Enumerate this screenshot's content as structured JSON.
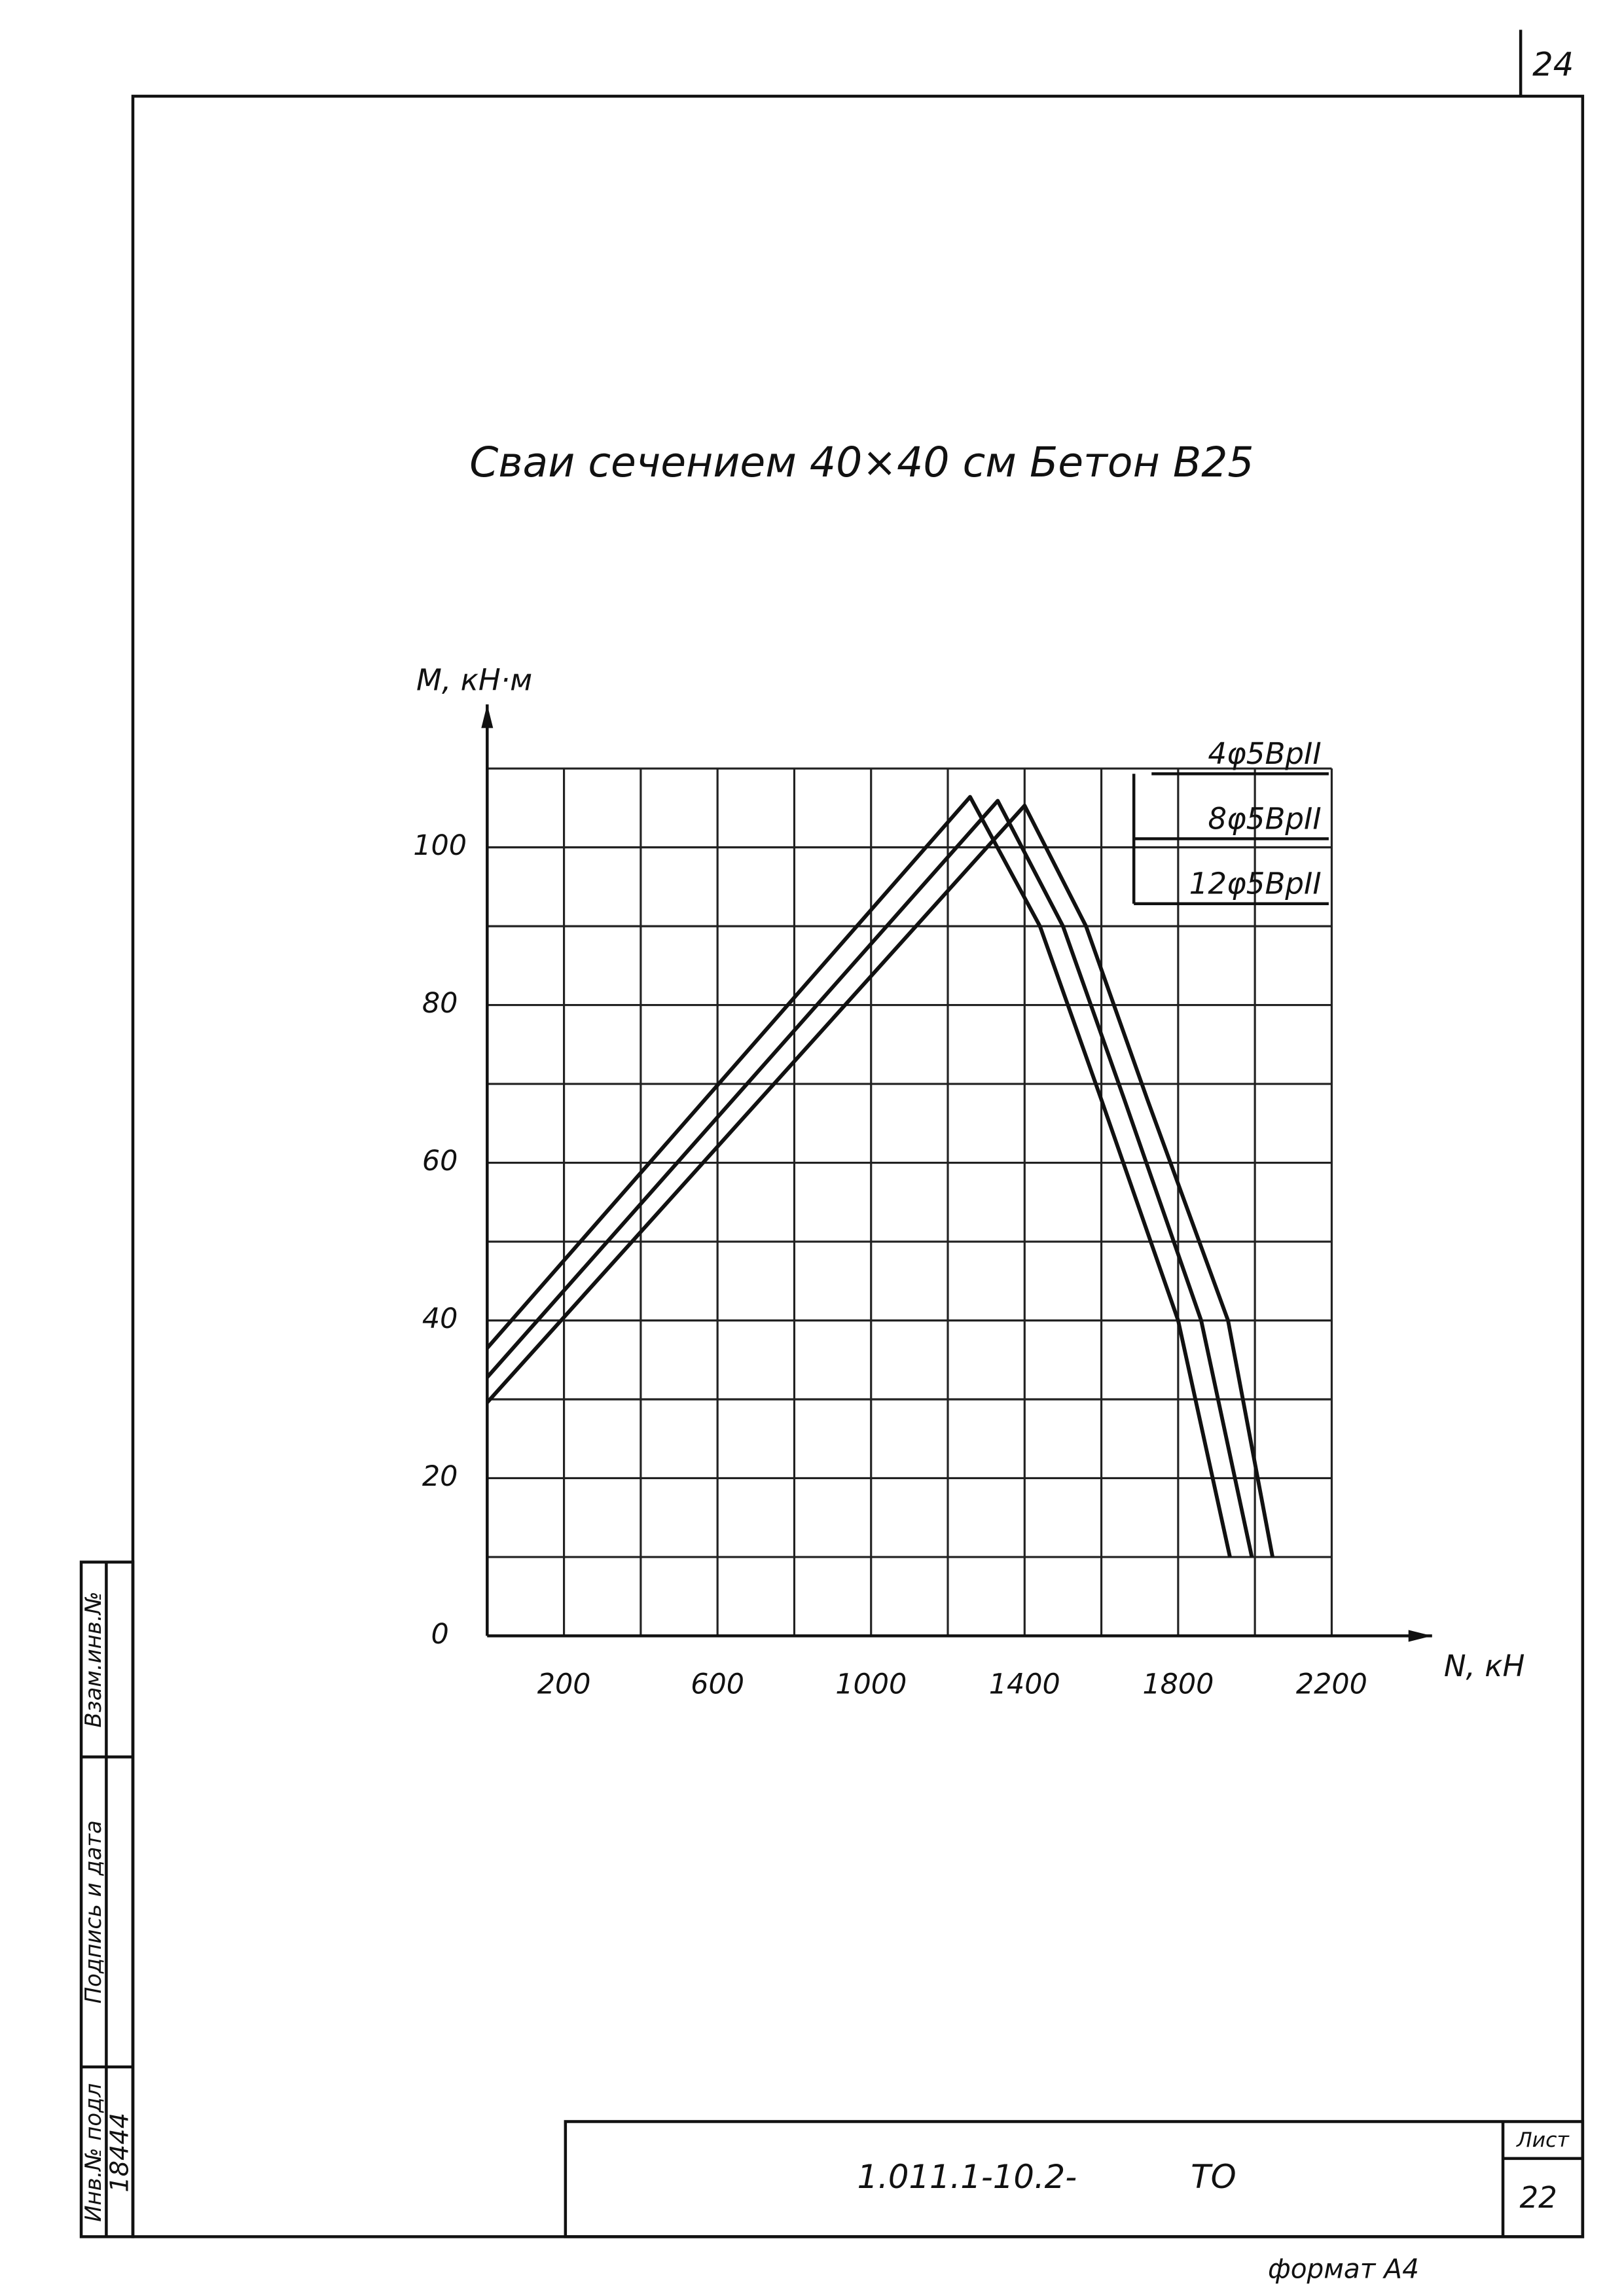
{
  "frame": {
    "page_number": "24",
    "document_code": "1.011.1-10.2-",
    "document_suffix": "ТО",
    "sheet_label": "Лист",
    "sheet_number": "22",
    "format": "формат А4",
    "side_labels": [
      "Инв.№ подл",
      "Подпись и дата",
      "Взам.инв.№"
    ],
    "inventory_number": "18444"
  },
  "chart_data": {
    "type": "line",
    "title": "Сваи сечением 40×40 см   Бетон В25",
    "x_label": "N, кН",
    "y_label": "M, кН·м",
    "xlim": [
      0,
      2400
    ],
    "ylim": [
      0,
      120
    ],
    "xticks": [
      200,
      600,
      1000,
      1400,
      1800,
      2200
    ],
    "yticks": [
      0,
      20,
      40,
      60,
      80,
      100
    ],
    "x_minor_grid": [
      400,
      800,
      1200,
      1600,
      2000
    ],
    "y_minor_grid": [
      10,
      30,
      50,
      70,
      90,
      110
    ],
    "grid": true,
    "color": "#111111",
    "series": [
      {
        "name": "4φ5ВрII",
        "x": [
          0,
          1258,
          1440,
          1600,
          1800,
          1935
        ],
        "values": [
          36.5,
          106.4,
          90,
          68,
          40,
          10
        ]
      },
      {
        "name": "8φ5ВрII",
        "x": [
          0,
          1330,
          1500,
          1660,
          1860,
          1992
        ],
        "values": [
          32.8,
          105.9,
          90,
          68,
          40,
          10
        ]
      },
      {
        "name": "12φ5ВрII",
        "x": [
          0,
          1400,
          1560,
          1720,
          1930,
          2046
        ],
        "values": [
          29.6,
          105.3,
          90,
          68,
          40,
          10
        ]
      }
    ]
  }
}
